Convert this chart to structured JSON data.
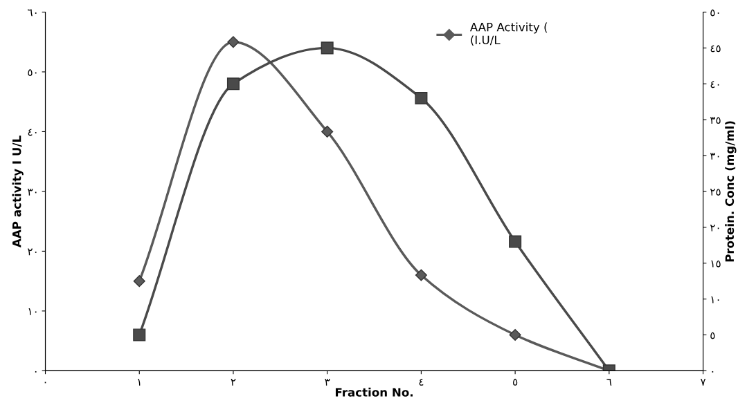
{
  "chart_data": {
    "type": "line",
    "xlabel": "Fraction No.",
    "ylabel": "AAP activity I U/L",
    "y2label": "Protein. Conc (mg/ml)",
    "x": [
      1,
      2,
      3,
      4,
      5,
      6
    ],
    "series": [
      {
        "name": "AAP Activity (\n(I.U/L",
        "color": "#5a5a5a",
        "marker": "diamond",
        "values": [
          15,
          55,
          40,
          16,
          6,
          0
        ]
      },
      {
        "color": "#4a4a4a",
        "marker": "square",
        "axis": "y2",
        "values": [
          5,
          40,
          45,
          38,
          18,
          0
        ]
      }
    ],
    "xlim": [
      0,
      7
    ],
    "xticks": [
      {
        "value": 0,
        "label": "٠"
      },
      {
        "value": 1,
        "label": "١"
      },
      {
        "value": 2,
        "label": "٢"
      },
      {
        "value": 3,
        "label": "٣"
      },
      {
        "value": 4,
        "label": "٤"
      },
      {
        "value": 5,
        "label": "٥"
      },
      {
        "value": 6,
        "label": "٦"
      },
      {
        "value": 7,
        "label": "٧"
      }
    ],
    "ylim": [
      0,
      60
    ],
    "yticks": [
      {
        "value": 0,
        "label": "٠"
      },
      {
        "value": 10,
        "label": "١٠"
      },
      {
        "value": 20,
        "label": "٢٠"
      },
      {
        "value": 30,
        "label": "٣٠"
      },
      {
        "value": 40,
        "label": "٤٠"
      },
      {
        "value": 50,
        "label": "٥٠"
      },
      {
        "value": 60,
        "label": "٦٠"
      }
    ],
    "y2lim": [
      0,
      50
    ],
    "y2ticks": [
      {
        "value": 0,
        "label": "٠"
      },
      {
        "value": 5,
        "label": "٥"
      },
      {
        "value": 10,
        "label": "١٠"
      },
      {
        "value": 15,
        "label": "١٥"
      },
      {
        "value": 20,
        "label": "٢٠"
      },
      {
        "value": 25,
        "label": "٢٥"
      },
      {
        "value": 30,
        "label": "٣٠"
      },
      {
        "value": 35,
        "label": "٣٥"
      },
      {
        "value": 40,
        "label": "٤٠"
      },
      {
        "value": 45,
        "label": "٤٥"
      },
      {
        "value": 50,
        "label": "٥٠"
      }
    ],
    "grid": false,
    "legend": "top right",
    "line_style": "solid"
  }
}
